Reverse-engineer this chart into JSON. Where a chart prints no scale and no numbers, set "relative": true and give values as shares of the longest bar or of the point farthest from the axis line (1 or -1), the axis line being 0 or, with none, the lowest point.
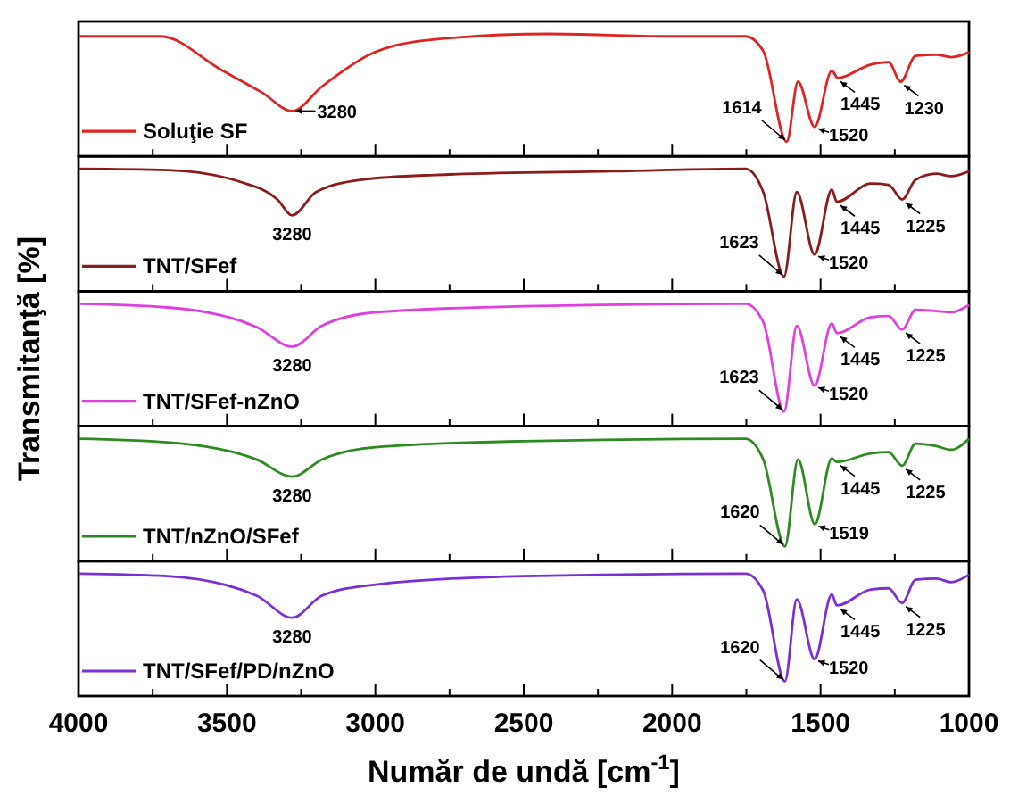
{
  "chart_data": [
    {
      "type": "line",
      "relative": true,
      "xlim": [
        4000,
        1000
      ],
      "xticks": [
        4000,
        {
          "value": 3750,
          "label": null
        },
        3500,
        {
          "value": 3250,
          "label": null
        },
        3000,
        {
          "value": 2750,
          "label": null
        },
        2500,
        {
          "value": 2250,
          "label": null
        },
        2000,
        {
          "value": 1750,
          "label": null
        },
        1500,
        {
          "value": 1250,
          "label": null
        },
        1000
      ],
      "tick_labels": false,
      "legend": "bottom left",
      "series": [
        {
          "name": "Soluţie SF",
          "color": "#e02424",
          "x": [
            4000,
            3723,
            3522,
            3381,
            3280,
            3180,
            3020,
            2819,
            2417,
            2015,
            1753,
            1693,
            1614,
            1576,
            1520,
            1462,
            1442,
            1331,
            1271,
            1230,
            1180,
            1110,
            1060,
            1000
          ],
          "values": [
            0.98,
            0.98,
            0.71,
            0.52,
            0.37,
            0.57,
            0.83,
            0.95,
            1,
            0.98,
            0.98,
            0.86,
            0.12,
            0.61,
            0.24,
            0.7,
            0.64,
            0.75,
            0.77,
            0.61,
            0.82,
            0.83,
            0.81,
            0.85
          ]
        }
      ],
      "annotations": [
        {
          "text": "3280",
          "x": 3280,
          "y": 0.37
        },
        {
          "text": "1614",
          "x": 1614,
          "y": 0.12
        },
        {
          "text": "1520",
          "x": 1520,
          "y": 0.24
        },
        {
          "text": "1445",
          "x": 1445,
          "y": 0.64
        },
        {
          "text": "1230",
          "x": 1230,
          "y": 0.61
        }
      ]
    },
    {
      "type": "line",
      "relative": true,
      "xlim": [
        4000,
        1000
      ],
      "xticks": [
        4000,
        {
          "value": 3750,
          "label": null
        },
        3500,
        {
          "value": 3250,
          "label": null
        },
        3000,
        {
          "value": 2750,
          "label": null
        },
        2500,
        {
          "value": 2250,
          "label": null
        },
        2000,
        {
          "value": 1750,
          "label": null
        },
        1500,
        {
          "value": 1250,
          "label": null
        },
        1000
      ],
      "tick_labels": false,
      "legend": "bottom left",
      "series": [
        {
          "name": "TNT/SFef",
          "color": "#8b1c1c",
          "x": [
            4000,
            3700,
            3450,
            3330,
            3280,
            3200,
            3050,
            2800,
            2200,
            1753,
            1693,
            1623,
            1580,
            1520,
            1462,
            1445,
            1331,
            1271,
            1225,
            1180,
            1110,
            1060,
            1000
          ],
          "values": [
            1,
            0.99,
            0.89,
            0.75,
            0.62,
            0.81,
            0.91,
            0.95,
            0.98,
            1,
            0.81,
            0.12,
            0.81,
            0.3,
            0.83,
            0.73,
            0.88,
            0.87,
            0.75,
            0.91,
            0.96,
            0.94,
            0.98
          ]
        }
      ],
      "annotations": [
        {
          "text": "3280",
          "x": 3280,
          "y": 0.62
        },
        {
          "text": "1623",
          "x": 1623,
          "y": 0.12
        },
        {
          "text": "1520",
          "x": 1520,
          "y": 0.3
        },
        {
          "text": "1445",
          "x": 1445,
          "y": 0.73
        },
        {
          "text": "1225",
          "x": 1225,
          "y": 0.75
        }
      ]
    },
    {
      "type": "line",
      "relative": true,
      "xlim": [
        4000,
        1000
      ],
      "xticks": [
        4000,
        {
          "value": 3750,
          "label": null
        },
        3500,
        {
          "value": 3250,
          "label": null
        },
        3000,
        {
          "value": 2750,
          "label": null
        },
        2500,
        {
          "value": 2250,
          "label": null
        },
        2000,
        {
          "value": 1750,
          "label": null
        },
        1500,
        {
          "value": 1250,
          "label": null
        },
        1000
      ],
      "tick_labels": false,
      "legend": "bottom left",
      "ylabel": "Transmitanţă [%]",
      "series": [
        {
          "name": "TNT/SFef-nZnO",
          "color": "#e040e0",
          "x": [
            4000,
            3700,
            3400,
            3280,
            3180,
            3000,
            2500,
            1753,
            1693,
            1623,
            1580,
            1520,
            1462,
            1445,
            1331,
            1271,
            1225,
            1180,
            1110,
            1060,
            1000
          ],
          "values": [
            1,
            0.97,
            0.81,
            0.65,
            0.82,
            0.93,
            0.98,
            1,
            0.85,
            0.12,
            0.82,
            0.33,
            0.84,
            0.76,
            0.89,
            0.9,
            0.79,
            0.95,
            0.94,
            0.93,
            0.99
          ]
        }
      ],
      "annotations": [
        {
          "text": "3280",
          "x": 3280,
          "y": 0.65
        },
        {
          "text": "1623",
          "x": 1623,
          "y": 0.12
        },
        {
          "text": "1520",
          "x": 1520,
          "y": 0.33
        },
        {
          "text": "1445",
          "x": 1445,
          "y": 0.76
        },
        {
          "text": "1225",
          "x": 1225,
          "y": 0.79
        }
      ]
    },
    {
      "type": "line",
      "relative": true,
      "xlim": [
        4000,
        1000
      ],
      "xticks": [
        4000,
        {
          "value": 3750,
          "label": null
        },
        3500,
        {
          "value": 3250,
          "label": null
        },
        3000,
        {
          "value": 2750,
          "label": null
        },
        2500,
        {
          "value": 2250,
          "label": null
        },
        2000,
        {
          "value": 1750,
          "label": null
        },
        1500,
        {
          "value": 1250,
          "label": null
        },
        1000
      ],
      "tick_labels": false,
      "legend": "bottom left",
      "series": [
        {
          "name": "TNT/nZnO/SFef",
          "color": "#2e8b22",
          "x": [
            4000,
            3700,
            3400,
            3280,
            3180,
            3000,
            2500,
            1753,
            1693,
            1620,
            1576,
            1519,
            1462,
            1445,
            1331,
            1271,
            1225,
            1180,
            1110,
            1060,
            1000
          ],
          "values": [
            1,
            0.97,
            0.83,
            0.69,
            0.83,
            0.93,
            0.98,
            1,
            0.83,
            0.12,
            0.83,
            0.3,
            0.84,
            0.81,
            0.88,
            0.89,
            0.78,
            0.96,
            0.94,
            0.91,
            1
          ]
        }
      ],
      "annotations": [
        {
          "text": "3280",
          "x": 3280,
          "y": 0.69
        },
        {
          "text": "1620",
          "x": 1620,
          "y": 0.12
        },
        {
          "text": "1519",
          "x": 1519,
          "y": 0.3
        },
        {
          "text": "1445",
          "x": 1445,
          "y": 0.81
        },
        {
          "text": "1225",
          "x": 1225,
          "y": 0.78
        }
      ]
    },
    {
      "type": "line",
      "relative": true,
      "xlim": [
        4000,
        1000
      ],
      "xticks": [
        4000,
        {
          "value": 3750,
          "label": null
        },
        3500,
        {
          "value": 3250,
          "label": null
        },
        3000,
        {
          "value": 2750,
          "label": null
        },
        2500,
        {
          "value": 2250,
          "label": null
        },
        2000,
        {
          "value": 1750,
          "label": null
        },
        1500,
        {
          "value": 1250,
          "label": null
        },
        1000
      ],
      "tick_labels": "x",
      "legend": "bottom left",
      "xlabel": "Număr de undă [cm$^{-1}$]",
      "series": [
        {
          "name": "TNT/SFef/PD/nZnO",
          "color": "#7b2fd6",
          "x": [
            4000,
            3700,
            3400,
            3280,
            3180,
            3000,
            2500,
            1753,
            1693,
            1620,
            1580,
            1520,
            1462,
            1445,
            1331,
            1271,
            1225,
            1180,
            1110,
            1060,
            1000
          ],
          "values": [
            1,
            0.98,
            0.82,
            0.64,
            0.82,
            0.91,
            0.98,
            1,
            0.86,
            0.12,
            0.79,
            0.3,
            0.83,
            0.74,
            0.87,
            0.88,
            0.76,
            0.95,
            0.96,
            0.93,
            0.99
          ]
        }
      ],
      "annotations": [
        {
          "text": "3280",
          "x": 3280,
          "y": 0.64
        },
        {
          "text": "1620",
          "x": 1620,
          "y": 0.12
        },
        {
          "text": "1520",
          "x": 1520,
          "y": 0.3
        },
        {
          "text": "1445",
          "x": 1445,
          "y": 0.74
        },
        {
          "text": "1225",
          "x": 1225,
          "y": 0.76
        }
      ]
    }
  ]
}
